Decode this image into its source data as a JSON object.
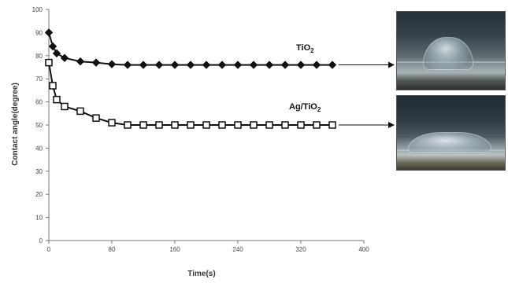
{
  "chart_data": {
    "type": "line",
    "xlabel": "Time(s)",
    "ylabel": "Contact angle(degree)",
    "xlim": [
      0,
      400
    ],
    "ylim": [
      0,
      100
    ],
    "xticks": [
      "0",
      "80",
      "160",
      "240",
      "320",
      "400"
    ],
    "yticks": [
      "0",
      "10",
      "20",
      "30",
      "40",
      "50",
      "60",
      "70",
      "80",
      "90",
      "100"
    ],
    "grid": false,
    "series": [
      {
        "name": "TiO2",
        "marker": "diamond-filled",
        "color": "#111111",
        "label_main": "TiO",
        "label_sub": "2",
        "x": [
          0,
          5,
          10,
          20,
          40,
          60,
          80,
          100,
          120,
          140,
          160,
          180,
          200,
          220,
          240,
          260,
          280,
          300,
          320,
          340,
          360
        ],
        "y": [
          90,
          84,
          81,
          79,
          77.5,
          77,
          76.3,
          76,
          76,
          76,
          76,
          76,
          76,
          76,
          76,
          76,
          76,
          76,
          76,
          76,
          76
        ]
      },
      {
        "name": "Ag/TiO2",
        "marker": "square-open",
        "color": "#111111",
        "label_main": "Ag/TiO",
        "label_sub": "2",
        "x": [
          0,
          5,
          10,
          20,
          40,
          60,
          80,
          100,
          120,
          140,
          160,
          180,
          200,
          220,
          240,
          260,
          280,
          300,
          320,
          340,
          360
        ],
        "y": [
          77,
          67,
          61,
          58,
          56,
          53,
          51,
          50,
          50,
          50,
          50,
          50,
          50,
          50,
          50,
          50,
          50,
          50,
          50,
          50,
          50
        ]
      }
    ]
  },
  "images": {
    "top_photo_icon": "droplet-photo-tio2",
    "bottom_photo_icon": "droplet-photo-ag-tio2"
  }
}
